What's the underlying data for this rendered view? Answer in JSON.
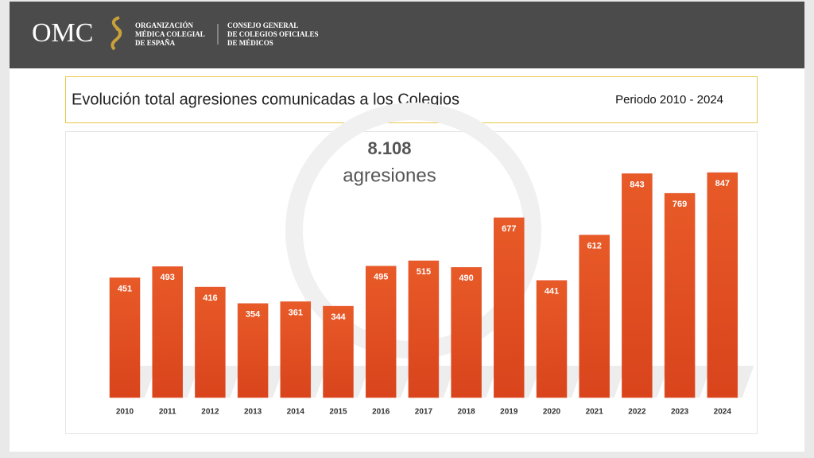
{
  "header": {
    "logo": "OMC",
    "organization": [
      "ORGANIZACIÓN",
      "MÉDICA COLEGIAL",
      "DE ESPAÑA"
    ],
    "council": [
      "CONSEJO GENERAL",
      "DE COLEGIOS OFICIALES",
      "DE MÉDICOS"
    ]
  },
  "chart_data": {
    "type": "bar",
    "title": "Evolución total agresiones comunicadas a los Colegios",
    "subtitle": "Periodo 2010 - 2024",
    "annotations": [
      "8.108",
      "agresiones"
    ],
    "categories": [
      "2010",
      "2011",
      "2012",
      "2013",
      "2014",
      "2015",
      "2016",
      "2017",
      "2018",
      "2019",
      "2020",
      "2021",
      "2022",
      "2023",
      "2024"
    ],
    "values": [
      451,
      493,
      416,
      354,
      361,
      344,
      495,
      515,
      490,
      677,
      441,
      612,
      843,
      769,
      847
    ],
    "color": "#e0522a"
  }
}
